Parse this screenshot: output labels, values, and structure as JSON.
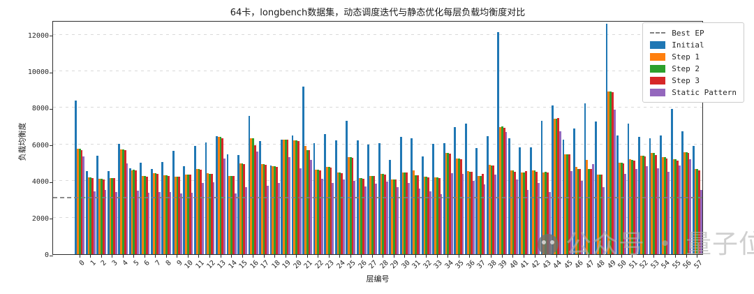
{
  "title": "64卡，longbench数据集，动态调度迭代与静态优化每层负载均衡度对比",
  "watermark": {
    "logo": "qbitai-circle-logo",
    "text_left": "公众号",
    "separator": "・",
    "text_right": "量子位"
  },
  "legend": {
    "items": [
      {
        "label": "Best EP",
        "color": "#7f7f7f",
        "swatch": "dashed-line"
      },
      {
        "label": "Initial",
        "color": "#1f77b4",
        "swatch": "box"
      },
      {
        "label": "Step 1",
        "color": "#ff7f0e",
        "swatch": "box"
      },
      {
        "label": "Step 2",
        "color": "#2ca02c",
        "swatch": "box"
      },
      {
        "label": "Step 3",
        "color": "#d62728",
        "swatch": "box"
      },
      {
        "label": "Static Pattern",
        "color": "#9467bd",
        "swatch": "box"
      }
    ]
  },
  "chart_data": {
    "type": "bar",
    "title": "64卡，longbench数据集，动态调度迭代与静态优化每层负载均衡度对比",
    "xlabel": "层编号",
    "ylabel": "负载均衡度",
    "grid": true,
    "legend_position": "upper right",
    "ylim": [
      0,
      12790
    ],
    "yticks": [
      0,
      2000,
      4000,
      6000,
      8000,
      10000,
      12000
    ],
    "categories": [
      "0",
      "1",
      "2",
      "3",
      "4",
      "5",
      "6",
      "7",
      "8",
      "9",
      "10",
      "11",
      "12",
      "13",
      "14",
      "15",
      "16",
      "17",
      "18",
      "19",
      "20",
      "21",
      "22",
      "23",
      "24",
      "25",
      "26",
      "27",
      "28",
      "29",
      "30",
      "31",
      "32",
      "33",
      "34",
      "35",
      "36",
      "37",
      "38",
      "39",
      "40",
      "41",
      "42",
      "43",
      "44",
      "45",
      "46",
      "47",
      "48",
      "49",
      "50",
      "51",
      "52",
      "53",
      "54",
      "55",
      "56",
      "57"
    ],
    "best_ep_line": {
      "label": "Best EP",
      "value": 3050,
      "color": "#7f7f7f",
      "style": "dashed"
    },
    "series": [
      {
        "name": "Initial",
        "color": "#1f77b4",
        "values": [
          8400,
          4550,
          5400,
          4550,
          6020,
          4700,
          5000,
          4650,
          5030,
          5670,
          4800,
          5920,
          6110,
          6470,
          5470,
          5440,
          7570,
          6200,
          4860,
          6280,
          6490,
          9170,
          6080,
          6580,
          6210,
          7290,
          6210,
          5980,
          6070,
          5150,
          6400,
          6350,
          5350,
          6050,
          6070,
          6960,
          7150,
          5790,
          6470,
          12150,
          6330,
          5860,
          5860,
          7290,
          8150,
          6280,
          6870,
          8240,
          7260,
          12600,
          6500,
          7130,
          6400,
          6330,
          6490,
          7950,
          6710,
          5900
        ]
      },
      {
        "name": "Step 1",
        "color": "#ff7f0e",
        "values": [
          5750,
          4200,
          4130,
          4160,
          5730,
          4600,
          4280,
          4420,
          4300,
          4240,
          4370,
          4650,
          4420,
          6400,
          4290,
          4960,
          6330,
          4930,
          4800,
          6280,
          6210,
          5920,
          4610,
          4770,
          4460,
          5310,
          4160,
          4290,
          4390,
          4100,
          4480,
          4580,
          4230,
          4200,
          5540,
          5220,
          4550,
          4290,
          4880,
          6960,
          4580,
          4460,
          4580,
          4480,
          7410,
          5470,
          4770,
          5150,
          4370,
          8910,
          5000,
          5180,
          5400,
          5520,
          5300,
          5180,
          5570,
          4650
        ]
      },
      {
        "name": "Step 2",
        "color": "#2ca02c",
        "values": [
          5750,
          4200,
          4130,
          4160,
          5730,
          4620,
          4280,
          4420,
          4300,
          4240,
          4370,
          4650,
          4400,
          6400,
          4290,
          4960,
          6330,
          4930,
          4800,
          6260,
          6210,
          5700,
          4610,
          4770,
          4460,
          5310,
          4160,
          4290,
          4390,
          4100,
          4480,
          4300,
          4230,
          4200,
          5520,
          5220,
          4520,
          4290,
          4840,
          7000,
          4580,
          4480,
          4600,
          4500,
          7390,
          5470,
          4670,
          4650,
          4370,
          8900,
          5000,
          5160,
          5380,
          5520,
          5300,
          5180,
          5570,
          4650
        ]
      },
      {
        "name": "Step 3",
        "color": "#d62728",
        "values": [
          5700,
          4180,
          4100,
          4160,
          5700,
          4600,
          4250,
          4400,
          4280,
          4220,
          4350,
          4620,
          4380,
          6350,
          4270,
          4940,
          5950,
          4900,
          4780,
          6250,
          6180,
          5700,
          4580,
          4740,
          4430,
          5280,
          4140,
          4270,
          4370,
          4080,
          4450,
          4300,
          4200,
          4180,
          5510,
          5200,
          4500,
          4400,
          4840,
          6910,
          4520,
          4540,
          4520,
          4460,
          7450,
          5470,
          4650,
          4650,
          4350,
          8850,
          4950,
          5130,
          5330,
          5430,
          5250,
          5130,
          5520,
          4600
        ]
      },
      {
        "name": "Static Pattern",
        "color": "#9467bd",
        "values": [
          5350,
          3450,
          3500,
          3400,
          4950,
          3480,
          3370,
          3400,
          3390,
          3310,
          3350,
          3880,
          3950,
          5250,
          3340,
          3650,
          5600,
          3760,
          3880,
          5310,
          4710,
          5150,
          4140,
          3880,
          4070,
          4010,
          3720,
          3840,
          3970,
          3650,
          3900,
          3600,
          3440,
          3270,
          4420,
          4390,
          4010,
          3800,
          4350,
          6700,
          4100,
          3530,
          3880,
          3400,
          6710,
          4550,
          4010,
          4930,
          3650,
          7890,
          4400,
          4650,
          4800,
          4710,
          4490,
          4840,
          5200,
          3500
        ]
      }
    ]
  }
}
